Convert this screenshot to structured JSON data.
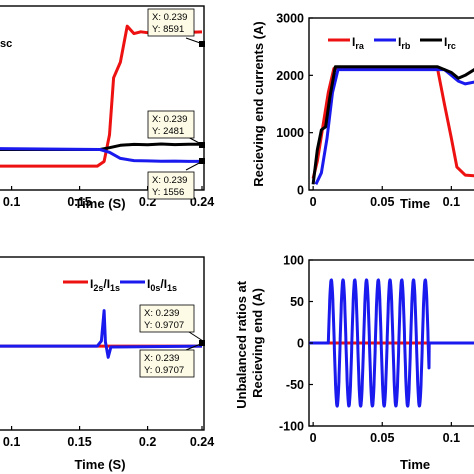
{
  "colors": {
    "red": "#ee1111",
    "blue": "#1a1aee",
    "black": "#000000",
    "tip_bg": "#fdfbe6"
  },
  "chart_data": [
    {
      "id": "p1",
      "type": "line",
      "panel": "top-left",
      "xlabel": "Time (S)",
      "ylabel": "",
      "xticks": [
        "0.1",
        "0.15",
        "0.2",
        "0.24"
      ],
      "yticks": [],
      "legend_fragment": "sc",
      "series": [
        {
          "color": "red",
          "x": [
            0.09,
            0.163,
            0.168,
            0.172,
            0.175,
            0.18,
            0.185,
            0.19,
            0.195,
            0.2,
            0.205,
            0.21,
            0.215,
            0.22,
            0.225,
            0.23,
            0.235,
            0.24
          ],
          "y": [
            1300,
            1300,
            1550,
            3000,
            6100,
            6950,
            8900,
            8500,
            8600,
            8550,
            8590,
            8620,
            8560,
            8610,
            8570,
            8600,
            8580,
            8591
          ]
        },
        {
          "color": "black",
          "x": [
            0.09,
            0.165,
            0.172,
            0.18,
            0.19,
            0.2,
            0.21,
            0.22,
            0.23,
            0.24
          ],
          "y": [
            2200,
            2200,
            2300,
            2430,
            2480,
            2460,
            2500,
            2470,
            2490,
            2481
          ]
        },
        {
          "color": "blue",
          "x": [
            0.09,
            0.165,
            0.172,
            0.18,
            0.19,
            0.2,
            0.21,
            0.22,
            0.23,
            0.24
          ],
          "y": [
            2250,
            2200,
            2050,
            1720,
            1600,
            1580,
            1560,
            1570,
            1555,
            1556
          ]
        }
      ],
      "datatips": [
        {
          "x_text": "X: 0.239",
          "y_text": "Y: 8591"
        },
        {
          "x_text": "X: 0.239",
          "y_text": "Y: 2481"
        },
        {
          "x_text": "X: 0.239",
          "y_text": "Y: 1556"
        }
      ]
    },
    {
      "id": "p2",
      "type": "line",
      "panel": "top-right",
      "xlabel": "Time",
      "ylabel": "Recieving end currents (A)",
      "xticks": [
        "0",
        "0.05",
        "0.1"
      ],
      "yticks": [
        "0",
        "1000",
        "2000",
        "3000"
      ],
      "ylim": [
        0,
        3000
      ],
      "legend": [
        "I_ra",
        "I_rb",
        "I_rc"
      ],
      "series": [
        {
          "name": "I_ra",
          "color": "red",
          "x": [
            0,
            0.003,
            0.007,
            0.011,
            0.015,
            0.09,
            0.095,
            0.1,
            0.104,
            0.11,
            0.12
          ],
          "y": [
            200,
            500,
            1100,
            1700,
            2120,
            2120,
            1500,
            900,
            400,
            260,
            240
          ]
        },
        {
          "name": "I_rb",
          "color": "blue",
          "x": [
            0.002,
            0.006,
            0.01,
            0.014,
            0.018,
            0.095,
            0.1,
            0.105,
            0.11,
            0.12
          ],
          "y": [
            100,
            300,
            900,
            1700,
            2100,
            2100,
            2000,
            1900,
            1850,
            1900
          ]
        },
        {
          "name": "I_rc",
          "color": "black",
          "x": [
            0,
            0.003,
            0.006,
            0.009,
            0.012,
            0.016,
            0.09,
            0.1,
            0.105,
            0.11,
            0.12
          ],
          "y": [
            100,
            700,
            1050,
            1100,
            1600,
            2150,
            2150,
            2050,
            1950,
            2000,
            2150
          ]
        }
      ]
    },
    {
      "id": "p3",
      "type": "line",
      "panel": "bottom-left",
      "xlabel": "Time (S)",
      "ylabel": "",
      "xticks": [
        "0.1",
        "0.15",
        "0.2",
        "0.24"
      ],
      "yticks": [],
      "legend": [
        "I_2s/I_1s",
        "I_0s/I_1s"
      ],
      "series": [
        {
          "name": "I_2s/I_1s",
          "color": "red",
          "x": [
            0.09,
            0.24
          ],
          "y": [
            0.97,
            0.97
          ]
        },
        {
          "name": "I_0s/I_1s",
          "color": "blue",
          "x": [
            0.09,
            0.163,
            0.166,
            0.168,
            0.169,
            0.171,
            0.173,
            0.24
          ],
          "y": [
            0.97,
            0.97,
            1.03,
            1.38,
            1.02,
            0.84,
            0.96,
            0.97
          ]
        }
      ],
      "datatips": [
        {
          "x_text": "X: 0.239",
          "y_text": "Y: 0.9707"
        },
        {
          "x_text": "X: 0.239",
          "y_text": "Y: 0.9707"
        }
      ]
    },
    {
      "id": "p4",
      "type": "line",
      "panel": "bottom-right",
      "xlabel": "Time",
      "ylabel": "Unbalanced ratios at Recieving end (A)",
      "xticks": [
        "0",
        "0.05",
        "0.1"
      ],
      "yticks": [
        "-100",
        "-50",
        "0",
        "50",
        "100"
      ],
      "ylim": [
        -100,
        100
      ],
      "series": [
        {
          "name": "red",
          "color": "red",
          "x": [
            0,
            0.12
          ],
          "y": [
            0,
            0
          ]
        },
        {
          "name": "blue",
          "color": "blue",
          "note": "oscillation envelope",
          "amplitude": 76,
          "start": 0.011,
          "end": 0.084,
          "period": 0.0085
        }
      ]
    }
  ]
}
